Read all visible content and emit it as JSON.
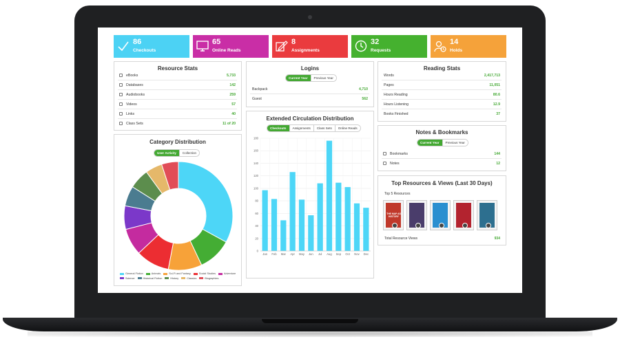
{
  "stat_cards": [
    {
      "number": "86",
      "label": "Checkouts",
      "color": "#4cd2f4",
      "icon": "check-icon"
    },
    {
      "number": "65",
      "label": "Online Reads",
      "color": "#c92ea6",
      "icon": "monitor-icon"
    },
    {
      "number": "8",
      "label": "Assignments",
      "color": "#ea3b3e",
      "icon": "pencil-paper-icon"
    },
    {
      "number": "32",
      "label": "Requests",
      "color": "#45b12f",
      "icon": "clock-icon"
    },
    {
      "number": "14",
      "label": "Holds",
      "color": "#f5a23a",
      "icon": "user-clock-icon"
    }
  ],
  "resource_stats": {
    "title": "Resource Stats",
    "rows": [
      {
        "label": "eBooks",
        "value": "5,733",
        "icon": "book-icon"
      },
      {
        "label": "Databases",
        "value": "142",
        "icon": "database-icon"
      },
      {
        "label": "Audiobooks",
        "value": "259",
        "icon": "headphones-icon"
      },
      {
        "label": "Videos",
        "value": "57",
        "icon": "play-icon"
      },
      {
        "label": "Links",
        "value": "40",
        "icon": "link-icon"
      },
      {
        "label": "Class Sets",
        "value": "11 of 20",
        "icon": "class-set-icon"
      }
    ]
  },
  "logins": {
    "title": "Logins",
    "toggle": [
      "Current Year",
      "Previous Year"
    ],
    "rows": [
      {
        "label": "Backpack",
        "value": "4,710"
      },
      {
        "label": "Guest",
        "value": "562"
      }
    ]
  },
  "reading_stats": {
    "title": "Reading Stats",
    "rows": [
      {
        "label": "Words",
        "value": "2,417,713"
      },
      {
        "label": "Pages",
        "value": "11,051"
      },
      {
        "label": "Hours Reading",
        "value": "80.6"
      },
      {
        "label": "Hours Listening",
        "value": "12.9"
      },
      {
        "label": "Books Finished",
        "value": "37"
      }
    ]
  },
  "category_distribution": {
    "title": "Category Distribution",
    "toggle": [
      "User Activity",
      "Collection"
    ]
  },
  "circulation": {
    "title": "Extended Circulation Distribution",
    "tabs": [
      "Checkouts",
      "Assignments",
      "Class Sets",
      "Online Reads"
    ]
  },
  "notes": {
    "title": "Notes & Bookmarks",
    "toggle": [
      "Current Year",
      "Previous Year"
    ],
    "rows": [
      {
        "label": "Bookmarks",
        "value": "144",
        "icon": "bookmark-icon"
      },
      {
        "label": "Notes",
        "value": "12",
        "icon": "note-icon"
      }
    ]
  },
  "top_resources": {
    "title": "Top Resources & Views (Last 30 Days)",
    "subtitle": "Top 5 Resources",
    "cover_text": "THE MAP AS HISTORY",
    "cover_colors": [
      "#c0392b",
      "#4a3d6b",
      "#2a8fd0",
      "#b3232f",
      "#2d6f8f"
    ],
    "total_label": "Total Resource Views",
    "total_value": "934"
  },
  "chart_data": [
    {
      "type": "pie",
      "title": "Category Distribution",
      "categories": [
        "General Fiction",
        "Animals",
        "Sci-Fi and Fantasy",
        "Social Studies",
        "Adventure",
        "Science",
        "Historical Fiction",
        "History",
        "Classics",
        "Biographies"
      ],
      "values": [
        33,
        10,
        10,
        10,
        8,
        7,
        6,
        6,
        5,
        5
      ],
      "colors": [
        "#4dd6f7",
        "#44ad34",
        "#f7a239",
        "#ec2d32",
        "#c42b9f",
        "#7b38c9",
        "#4b7c90",
        "#5c8d4d",
        "#e5b86a",
        "#e14d57"
      ]
    },
    {
      "type": "bar",
      "title": "Extended Circulation Distribution",
      "categories": [
        "Jan",
        "Feb",
        "Mar",
        "Apr",
        "May",
        "Jun",
        "Jul",
        "Aug",
        "Sep",
        "Oct",
        "Nov",
        "Dec"
      ],
      "values": [
        97,
        83,
        49,
        126,
        82,
        57,
        108,
        176,
        109,
        102,
        76,
        69
      ],
      "ylim": [
        0,
        180
      ],
      "yticks": [
        "0",
        "20",
        "40",
        "60",
        "80",
        "100",
        "120",
        "140",
        "160",
        "180"
      ],
      "grid": true,
      "bar_color": "#4dd6f7"
    }
  ]
}
